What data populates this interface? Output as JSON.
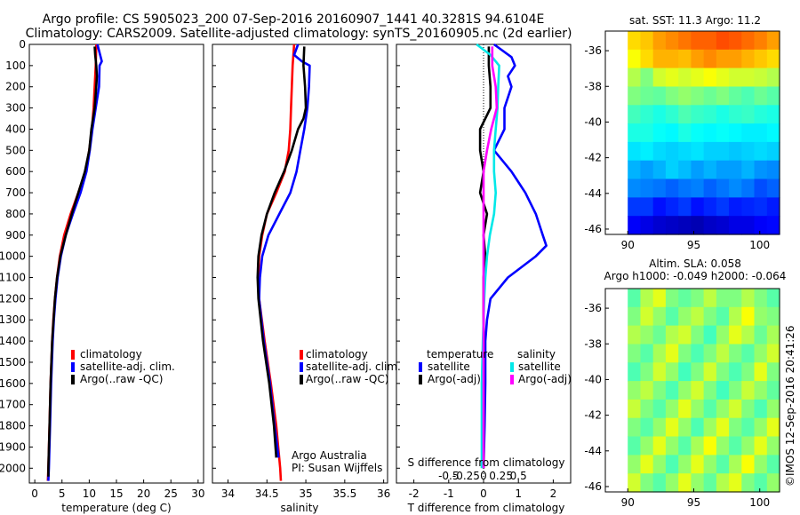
{
  "header": {
    "title_line1": "Argo profile: CS 5905023_200 07-Sep-2016 20160907_1441 40.3281S 94.6104E",
    "title_line2": "Climatology: CARS2009. Satellite-adjusted climatology: synTS_20160905.nc (2d earlier)"
  },
  "colors": {
    "climatology": "#ff0000",
    "satellite": "#0000ff",
    "argo": "#000000",
    "sal_satellite": "#00e8e8",
    "sal_argo": "#ff00ff"
  },
  "chart_data": [
    {
      "type": "line",
      "name": "temperature-panel",
      "xlabel": "temperature (deg C)",
      "xlim": [
        -1,
        31
      ],
      "xticks": [
        "0",
        "5",
        "10",
        "15",
        "20",
        "25",
        "30"
      ],
      "xtick_values": [
        0,
        5,
        10,
        15,
        20,
        25,
        30
      ],
      "ylim": [
        0,
        2070
      ],
      "yticks": [
        "0",
        "100",
        "200",
        "300",
        "400",
        "500",
        "600",
        "700",
        "800",
        "900",
        "1000",
        "1100",
        "1200",
        "1300",
        "1400",
        "1500",
        "1600",
        "1700",
        "1800",
        "1900",
        "2000"
      ],
      "ytick_values": [
        0,
        100,
        200,
        300,
        400,
        500,
        600,
        700,
        800,
        900,
        1000,
        1100,
        1200,
        1300,
        1400,
        1500,
        1600,
        1700,
        1800,
        1900,
        2000
      ],
      "legend": [
        "climatology",
        "satellite-adj. clim.",
        "Argo(..raw -QC)"
      ],
      "series": [
        {
          "name": "climatology",
          "color_key": "climatology",
          "depth": [
            0,
            100,
            200,
            300,
            400,
            500,
            600,
            700,
            800,
            900,
            1000,
            1100,
            1200,
            1300,
            1400,
            1600,
            1800,
            2000,
            2060
          ],
          "values": [
            11.3,
            11.2,
            11.0,
            10.8,
            10.5,
            10.0,
            9.3,
            8.0,
            6.6,
            5.4,
            4.6,
            4.1,
            3.7,
            3.4,
            3.2,
            2.9,
            2.7,
            2.5,
            2.4
          ]
        },
        {
          "name": "satellite-adj. clim.",
          "color_key": "satellite",
          "depth": [
            0,
            80,
            100,
            200,
            300,
            400,
            500,
            600,
            700,
            800,
            900,
            1000,
            1100,
            1200,
            1300,
            1400,
            1600,
            1800,
            2000,
            2060
          ],
          "values": [
            11.5,
            12.3,
            11.9,
            11.8,
            11.2,
            10.6,
            10.1,
            9.5,
            8.4,
            7.0,
            5.7,
            4.8,
            4.2,
            3.8,
            3.5,
            3.3,
            3.0,
            2.8,
            2.6,
            2.5
          ]
        },
        {
          "name": "Argo(..raw -QC)",
          "color_key": "argo",
          "depth": [
            10,
            50,
            100,
            150,
            200,
            300,
            400,
            500,
            600,
            700,
            800,
            900,
            1000,
            1100,
            1200,
            1400,
            1600,
            1800,
            2000,
            2040
          ],
          "values": [
            11.0,
            11.1,
            11.3,
            11.4,
            11.3,
            11.0,
            10.4,
            10.0,
            9.2,
            8.0,
            6.8,
            5.7,
            4.7,
            4.1,
            3.7,
            3.2,
            2.9,
            2.7,
            2.5,
            2.5
          ]
        }
      ]
    },
    {
      "type": "line",
      "name": "salinity-panel",
      "xlabel": "salinity",
      "xlim": [
        33.8,
        36.05
      ],
      "xticks": [
        "34",
        "34.5",
        "35",
        "35.5",
        "36"
      ],
      "xtick_values": [
        34,
        34.5,
        35,
        35.5,
        36
      ],
      "ylim": [
        0,
        2070
      ],
      "legend": [
        "climatology",
        "satellite-adj. clim.",
        "Argo(..raw -QC)"
      ],
      "annotation": [
        "Argo Australia",
        "PI: Susan Wijffels"
      ],
      "series": [
        {
          "name": "climatology",
          "color_key": "climatology",
          "depth": [
            0,
            100,
            200,
            300,
            400,
            500,
            600,
            700,
            800,
            900,
            1000,
            1100,
            1200,
            1400,
            1600,
            1800,
            2000,
            2060
          ],
          "values": [
            34.85,
            34.83,
            34.82,
            34.81,
            34.8,
            34.78,
            34.73,
            34.62,
            34.5,
            34.44,
            34.4,
            34.39,
            34.4,
            34.47,
            34.55,
            34.62,
            34.67,
            34.68
          ]
        },
        {
          "name": "satellite-adj. clim.",
          "color_key": "satellite",
          "depth": [
            0,
            50,
            80,
            100,
            200,
            300,
            400,
            500,
            600,
            700,
            800,
            900,
            1000,
            1100,
            1200,
            1400,
            1600,
            1800,
            1950
          ],
          "values": [
            34.9,
            34.85,
            34.95,
            35.05,
            35.04,
            35.02,
            34.98,
            34.93,
            34.88,
            34.8,
            34.66,
            34.52,
            34.44,
            34.41,
            34.4,
            34.46,
            34.54,
            34.6,
            34.65
          ]
        },
        {
          "name": "Argo(..raw -QC)",
          "color_key": "argo",
          "depth": [
            10,
            100,
            200,
            300,
            350,
            400,
            500,
            600,
            700,
            800,
            900,
            1000,
            1100,
            1200,
            1400,
            1600,
            1800,
            1950
          ],
          "values": [
            34.98,
            34.97,
            34.99,
            35.0,
            34.97,
            34.9,
            34.82,
            34.72,
            34.6,
            34.5,
            34.43,
            34.39,
            34.38,
            34.39,
            34.45,
            34.53,
            34.59,
            34.62
          ]
        }
      ]
    },
    {
      "type": "line",
      "name": "difference-panel",
      "xlabel": "T difference from climatology",
      "xlabel_top": "S difference from climatology",
      "xlim": [
        -2.5,
        2.5
      ],
      "xticks": [
        "-2",
        "-1",
        "0",
        "1",
        "2"
      ],
      "xtick_values": [
        -2,
        -1,
        0,
        1,
        2
      ],
      "xticks_top": [
        "-0.5",
        "-0.25",
        "0",
        "0.25",
        "0.5"
      ],
      "xticks_top_values": [
        -1,
        -0.5,
        0,
        0.5,
        1
      ],
      "ylim": [
        0,
        2070
      ],
      "legend_titles": [
        "temperature",
        "salinity"
      ],
      "legend": [
        "satellite",
        "Argo(-adj)",
        "satellite",
        "Argo(-adj)"
      ],
      "series": [
        {
          "name": "temperature satellite",
          "color_key": "satellite",
          "depth": [
            0,
            60,
            100,
            150,
            200,
            300,
            400,
            500,
            600,
            650,
            700,
            800,
            900,
            950,
            1000,
            1100,
            1200,
            1300,
            1400,
            1600,
            1800,
            2000
          ],
          "values": [
            0.3,
            0.8,
            0.9,
            0.7,
            0.8,
            0.6,
            0.6,
            0.3,
            0.8,
            1.0,
            1.2,
            1.5,
            1.7,
            1.8,
            1.5,
            0.7,
            0.2,
            0.1,
            0.05,
            0.05,
            0.03,
            0.0
          ]
        },
        {
          "name": "temperature Argo(-adj)",
          "color_key": "argo",
          "depth": [
            10,
            100,
            200,
            300,
            400,
            500,
            600,
            700,
            800,
            900,
            1000,
            1100,
            1200,
            1400,
            1600,
            1800,
            2000
          ],
          "values": [
            0.15,
            0.15,
            0.2,
            0.2,
            -0.1,
            -0.1,
            0.0,
            -0.1,
            0.1,
            0.0,
            0.05,
            0.0,
            0.0,
            0.0,
            0.0,
            0.0,
            0.0
          ]
        },
        {
          "name": "salinity satellite",
          "color_key": "sal_satellite",
          "depth": [
            0,
            50,
            100,
            200,
            300,
            400,
            500,
            600,
            700,
            800,
            900,
            1000,
            1100,
            1200,
            1400,
            1600,
            1800,
            2000
          ],
          "values": [
            -0.2,
            0.2,
            0.45,
            0.42,
            0.4,
            0.35,
            0.3,
            0.3,
            0.35,
            0.3,
            0.18,
            0.1,
            0.05,
            0.02,
            -0.02,
            -0.05,
            -0.05,
            -0.05
          ]
        },
        {
          "name": "salinity Argo(-adj)",
          "color_key": "sal_argo",
          "depth": [
            10,
            100,
            200,
            300,
            400,
            500,
            600,
            700,
            800,
            900,
            1000,
            1200,
            1400,
            1600,
            1800,
            2000
          ],
          "values": [
            0.25,
            0.25,
            0.35,
            0.38,
            0.22,
            0.1,
            0.0,
            0.0,
            0.0,
            0.0,
            0.0,
            0.0,
            0.0,
            0.0,
            0.0,
            0.0
          ]
        }
      ]
    },
    {
      "type": "heatmap",
      "name": "sst-map",
      "title": "sat. SST: 11.3 Argo: 11.2",
      "xticks": [
        "90",
        "95",
        "100"
      ],
      "xtick_values": [
        90,
        95,
        100
      ],
      "yticks": [
        "-36",
        "-38",
        "-40",
        "-42",
        "-44",
        "-46"
      ],
      "ytick_values": [
        -36,
        -38,
        -40,
        -42,
        -44,
        -46
      ],
      "xlim": [
        88.3,
        101.5
      ],
      "ylim": [
        -46.3,
        -34.9
      ],
      "data_extent": {
        "lon": [
          90,
          101.5
        ],
        "lat": [
          -46.3,
          -34.9
        ]
      },
      "palette": "jet",
      "rows_north_to_south": [
        [
          0.66,
          0.68,
          0.72,
          0.74,
          0.76,
          0.78,
          0.78,
          0.8,
          0.79,
          0.77,
          0.75,
          0.72
        ],
        [
          0.62,
          0.66,
          0.7,
          0.7,
          0.69,
          0.72,
          0.74,
          0.72,
          0.72,
          0.7,
          0.68,
          0.66
        ],
        [
          0.55,
          0.5,
          0.58,
          0.6,
          0.58,
          0.6,
          0.62,
          0.6,
          0.58,
          0.58,
          0.57,
          0.55
        ],
        [
          0.5,
          0.48,
          0.47,
          0.5,
          0.52,
          0.5,
          0.48,
          0.5,
          0.47,
          0.45,
          0.48,
          0.46
        ],
        [
          0.44,
          0.42,
          0.4,
          0.42,
          0.45,
          0.43,
          0.42,
          0.4,
          0.42,
          0.43,
          0.41,
          0.4
        ],
        [
          0.4,
          0.4,
          0.38,
          0.37,
          0.4,
          0.38,
          0.37,
          0.38,
          0.37,
          0.36,
          0.36,
          0.37
        ],
        [
          0.35,
          0.36,
          0.34,
          0.33,
          0.34,
          0.35,
          0.33,
          0.33,
          0.32,
          0.33,
          0.34,
          0.33
        ],
        [
          0.3,
          0.28,
          0.3,
          0.33,
          0.31,
          0.28,
          0.3,
          0.28,
          0.28,
          0.3,
          0.27,
          0.26
        ],
        [
          0.26,
          0.25,
          0.24,
          0.22,
          0.24,
          0.25,
          0.22,
          0.24,
          0.26,
          0.24,
          0.2,
          0.22
        ],
        [
          0.18,
          0.18,
          0.14,
          0.16,
          0.18,
          0.14,
          0.16,
          0.18,
          0.15,
          0.16,
          0.17,
          0.15
        ],
        [
          0.12,
          0.1,
          0.08,
          0.07,
          0.06,
          0.05,
          0.07,
          0.08,
          0.1,
          0.1,
          0.12,
          0.13
        ]
      ]
    },
    {
      "type": "heatmap",
      "name": "sla-map",
      "title_line1": "Altim. SLA: 0.058",
      "title_line2": "Argo h1000: -0.049 h2000: -0.064",
      "xticks": [
        "90",
        "95",
        "100"
      ],
      "xtick_values": [
        90,
        95,
        100
      ],
      "yticks": [
        "-36",
        "-38",
        "-40",
        "-42",
        "-44",
        "-46"
      ],
      "ytick_values": [
        -36,
        -38,
        -40,
        -42,
        -44,
        -46
      ],
      "xlim": [
        88.3,
        101.5
      ],
      "ylim": [
        -46.3,
        -34.9
      ],
      "data_extent": {
        "lon": [
          90,
          101.5
        ],
        "lat": [
          -46.3,
          -34.9
        ]
      },
      "palette": "jet",
      "rows_north_to_south": [
        [
          0.46,
          0.55,
          0.6,
          0.5,
          0.47,
          0.5,
          0.56,
          0.5,
          0.5,
          0.55,
          0.5,
          0.46
        ],
        [
          0.5,
          0.58,
          0.52,
          0.46,
          0.52,
          0.56,
          0.5,
          0.46,
          0.55,
          0.62,
          0.52,
          0.5
        ],
        [
          0.55,
          0.52,
          0.48,
          0.55,
          0.58,
          0.5,
          0.44,
          0.52,
          0.6,
          0.55,
          0.48,
          0.54
        ],
        [
          0.5,
          0.46,
          0.54,
          0.6,
          0.5,
          0.45,
          0.5,
          0.56,
          0.5,
          0.46,
          0.52,
          0.58
        ],
        [
          0.45,
          0.5,
          0.58,
          0.52,
          0.44,
          0.5,
          0.58,
          0.5,
          0.45,
          0.5,
          0.6,
          0.5
        ],
        [
          0.52,
          0.56,
          0.5,
          0.45,
          0.52,
          0.58,
          0.5,
          0.44,
          0.5,
          0.57,
          0.52,
          0.47
        ],
        [
          0.57,
          0.5,
          0.46,
          0.52,
          0.6,
          0.52,
          0.46,
          0.52,
          0.58,
          0.5,
          0.45,
          0.52
        ],
        [
          0.5,
          0.46,
          0.52,
          0.6,
          0.52,
          0.45,
          0.53,
          0.6,
          0.5,
          0.46,
          0.52,
          0.6
        ],
        [
          0.46,
          0.52,
          0.6,
          0.52,
          0.46,
          0.54,
          0.62,
          0.52,
          0.46,
          0.52,
          0.6,
          0.52
        ],
        [
          0.52,
          0.6,
          0.52,
          0.45,
          0.52,
          0.6,
          0.52,
          0.46,
          0.54,
          0.62,
          0.52,
          0.46
        ],
        [
          0.58,
          0.5,
          0.46,
          0.52,
          0.6,
          0.52,
          0.47,
          0.55,
          0.6,
          0.5,
          0.46,
          0.52
        ]
      ]
    }
  ],
  "credit": "©IMOS 12-Sep-2016 20:41:26"
}
